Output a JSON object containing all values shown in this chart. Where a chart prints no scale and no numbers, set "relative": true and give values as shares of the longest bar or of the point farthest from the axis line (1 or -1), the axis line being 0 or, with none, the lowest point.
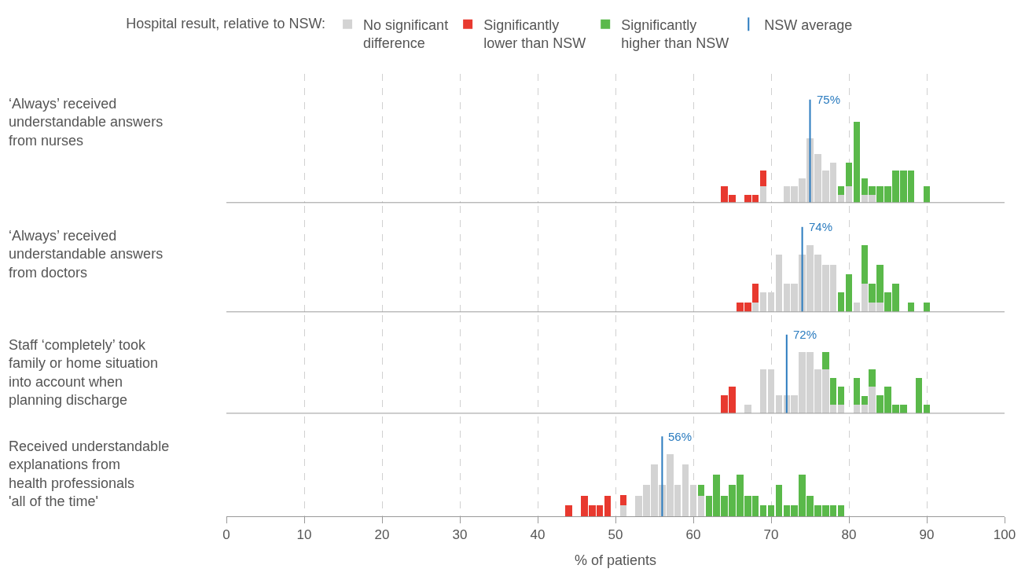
{
  "chart_data": [
    {
      "type": "bar",
      "stacked": true,
      "relative": true,
      "title": "‘Always’ received\nunderstandable answers\nfrom nurses",
      "legend": "top",
      "legend_title": "Hospital result, relative to NSW:",
      "annotations": [
        "NSW average"
      ],
      "grid": "x",
      "tick_labels": false,
      "xlim": [
        0,
        100
      ],
      "xticks": [
        0,
        10,
        20,
        30,
        40,
        50,
        60,
        70,
        80,
        90,
        100
      ],
      "x": [
        64,
        65,
        67,
        68,
        69,
        72,
        73,
        74,
        75,
        76,
        77,
        78,
        79,
        80,
        81,
        82,
        83,
        84,
        85,
        86,
        87,
        88,
        90
      ],
      "ref_lines": [
        {
          "axis": "x",
          "value": 75,
          "label": "75%",
          "color": "#2a7bbf"
        }
      ],
      "series": [
        {
          "name": "No significant\ndifference",
          "color": "#d3d3d3",
          "values": [
            null,
            null,
            null,
            null,
            0.2,
            0.2,
            0.2,
            0.3,
            0.8,
            0.6,
            0.4,
            0.5,
            0.1,
            0.2,
            null,
            0.1,
            0.1,
            null,
            null,
            null,
            null,
            null,
            null
          ]
        },
        {
          "name": "Significantly\nlower than NSW",
          "color": "#e8392f",
          "values": [
            0.2,
            0.1,
            0.1,
            0.1,
            0.2,
            null,
            null,
            null,
            null,
            null,
            null,
            null,
            null,
            null,
            null,
            null,
            null,
            null,
            null,
            null,
            null,
            null,
            null
          ]
        },
        {
          "name": "Significantly\nhigher than NSW",
          "color": "#5ab94a",
          "values": [
            null,
            null,
            null,
            null,
            null,
            null,
            null,
            null,
            null,
            null,
            null,
            null,
            0.1,
            0.3,
            1,
            0.2,
            0.1,
            0.2,
            0.2,
            0.4,
            0.4,
            0.4,
            0.2
          ]
        }
      ]
    },
    {
      "type": "bar",
      "stacked": true,
      "relative": true,
      "title": "‘Always’ received\nunderstandable answers\nfrom doctors",
      "grid": "x",
      "tick_labels": false,
      "xlim": [
        0,
        100
      ],
      "xticks": [
        0,
        10,
        20,
        30,
        40,
        50,
        60,
        70,
        80,
        90,
        100
      ],
      "x": [
        66,
        67,
        68,
        69,
        70,
        71,
        72,
        73,
        74,
        75,
        76,
        77,
        78,
        79,
        80,
        81,
        82,
        83,
        84,
        85,
        86,
        88,
        90
      ],
      "ref_lines": [
        {
          "axis": "x",
          "value": 74,
          "label": "74%",
          "color": "#2a7bbf"
        }
      ],
      "series": [
        {
          "color": "#d3d3d3",
          "values": [
            null,
            null,
            0.14,
            0.29,
            0.29,
            0.86,
            0.43,
            0.43,
            0.86,
            1,
            0.86,
            0.71,
            0.71,
            null,
            null,
            0.14,
            0.43,
            0.14,
            0.14,
            null,
            null,
            null,
            null
          ]
        },
        {
          "color": "#e8392f",
          "values": [
            0.14,
            0.14,
            0.29,
            null,
            null,
            null,
            null,
            null,
            null,
            null,
            null,
            null,
            null,
            null,
            null,
            null,
            null,
            null,
            null,
            null,
            null,
            null,
            null
          ]
        },
        {
          "color": "#5ab94a",
          "values": [
            null,
            null,
            null,
            null,
            null,
            null,
            null,
            null,
            null,
            null,
            null,
            null,
            null,
            0.29,
            0.57,
            null,
            0.57,
            0.29,
            0.57,
            0.29,
            0.43,
            0.14,
            0.14
          ]
        }
      ]
    },
    {
      "type": "bar",
      "stacked": true,
      "relative": true,
      "title": "Staff ‘completely’ took\nfamily or home situation\ninto account when\nplanning discharge",
      "grid": "x",
      "tick_labels": false,
      "xlim": [
        0,
        100
      ],
      "xticks": [
        0,
        10,
        20,
        30,
        40,
        50,
        60,
        70,
        80,
        90,
        100
      ],
      "x": [
        64,
        65,
        67,
        69,
        70,
        71,
        72,
        73,
        74,
        75,
        76,
        77,
        78,
        79,
        81,
        82,
        83,
        84,
        85,
        86,
        87,
        89,
        90
      ],
      "ref_lines": [
        {
          "axis": "x",
          "value": 72,
          "label": "72%",
          "color": "#2a7bbf"
        }
      ],
      "series": [
        {
          "color": "#d3d3d3",
          "values": [
            null,
            null,
            0.14,
            0.71,
            0.71,
            0.29,
            0.29,
            0.29,
            1,
            1,
            0.71,
            0.71,
            0.14,
            0.14,
            0.14,
            0.14,
            0.43,
            null,
            null,
            null,
            null,
            null,
            null
          ]
        },
        {
          "color": "#e8392f",
          "values": [
            0.29,
            0.43,
            null,
            null,
            null,
            null,
            null,
            null,
            null,
            null,
            null,
            null,
            null,
            null,
            null,
            null,
            null,
            null,
            null,
            null,
            null,
            null,
            null
          ]
        },
        {
          "color": "#5ab94a",
          "values": [
            null,
            null,
            null,
            null,
            null,
            null,
            null,
            null,
            null,
            null,
            null,
            0.29,
            0.43,
            0.29,
            0.43,
            0.14,
            0.29,
            0.29,
            0.43,
            0.14,
            0.14,
            0.57,
            0.14
          ]
        }
      ]
    },
    {
      "type": "bar",
      "stacked": true,
      "relative": true,
      "title": "Received understandable\nexplanations from\nhealth professionals\n'all of the time'",
      "xlabel": "% of patients",
      "grid": "x",
      "tick_labels": "x",
      "xlim": [
        0,
        100
      ],
      "xticks": [
        0,
        10,
        20,
        30,
        40,
        50,
        60,
        70,
        80,
        90,
        100
      ],
      "x": [
        44,
        46,
        47,
        48,
        49,
        51,
        53,
        54,
        55,
        56,
        57,
        58,
        59,
        60,
        61,
        62,
        63,
        64,
        65,
        66,
        67,
        68,
        69,
        70,
        71,
        72,
        73,
        74,
        75,
        76,
        77,
        78,
        79
      ],
      "ref_lines": [
        {
          "axis": "x",
          "value": 56,
          "label": "56%",
          "color": "#2a7bbf"
        }
      ],
      "series": [
        {
          "color": "#d3d3d3",
          "values": [
            null,
            null,
            null,
            null,
            null,
            0.17,
            0.33,
            0.5,
            0.83,
            0.5,
            1,
            0.5,
            0.83,
            0.5,
            0.33,
            null,
            null,
            null,
            null,
            null,
            null,
            null,
            null,
            null,
            null,
            null,
            null,
            null,
            null,
            null,
            null,
            null,
            null
          ]
        },
        {
          "color": "#e8392f",
          "values": [
            0.17,
            0.33,
            0.17,
            0.17,
            0.33,
            0.17,
            null,
            null,
            null,
            null,
            null,
            null,
            null,
            null,
            null,
            null,
            null,
            null,
            null,
            null,
            null,
            null,
            null,
            null,
            null,
            null,
            null,
            null,
            null,
            null,
            null,
            null,
            null
          ]
        },
        {
          "color": "#5ab94a",
          "values": [
            null,
            null,
            null,
            null,
            null,
            null,
            null,
            null,
            null,
            null,
            null,
            null,
            null,
            null,
            0.17,
            0.33,
            0.67,
            0.33,
            0.5,
            0.67,
            0.33,
            0.33,
            0.17,
            0.17,
            0.5,
            0.17,
            0.17,
            0.67,
            0.33,
            0.17,
            0.17,
            0.17,
            0.17
          ]
        }
      ]
    }
  ]
}
